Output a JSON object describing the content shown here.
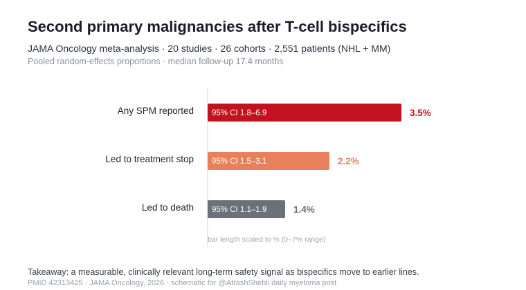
{
  "header": {
    "title": "Second primary malignancies after T-cell bispecifics",
    "subtitle": "JAMA Oncology meta-analysis · 20 studies · 26 cohorts · 2,551 patients (NHL + MM)",
    "subtitle2": "Pooled random-effects proportions · median follow-up 17.4 months"
  },
  "chart_data": {
    "type": "bar",
    "orientation": "horizontal",
    "categories": [
      "Any SPM reported",
      "Led to treatment stop",
      "Led to death"
    ],
    "values": [
      3.5,
      2.2,
      1.4
    ],
    "value_labels": [
      "3.5%",
      "2.2%",
      "1.4%"
    ],
    "ci_labels": [
      "95% CI 1.8–6.9",
      "95% CI 1.5–3.1",
      "95% CI 1.1–1.9"
    ],
    "colors": [
      "#c3121f",
      "#e8805b",
      "#6b7079"
    ],
    "xlim": [
      0,
      7
    ],
    "axis_note": "bar length scaled to % (0–7% range)"
  },
  "footer": {
    "takeaway": "Takeaway: a measurable, clinically relevant long-term safety signal as bispecifics move to earlier lines.",
    "source": "PMID 42313425 · JAMA Oncology, 2026 · schematic for @AtrashShebli daily myeloma post"
  }
}
